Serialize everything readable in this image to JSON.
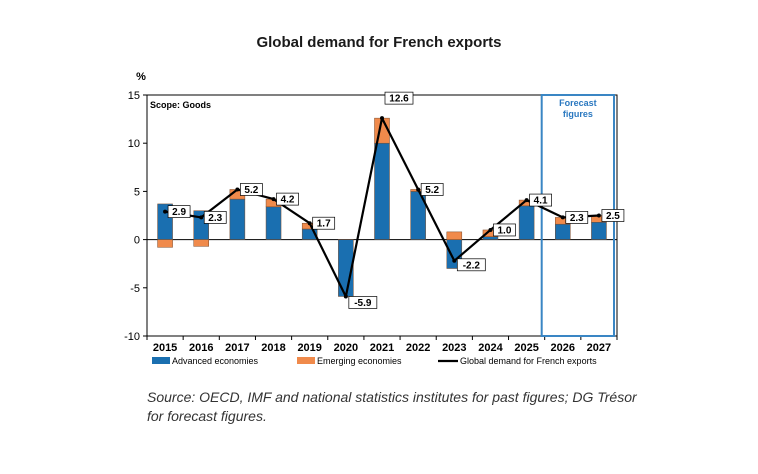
{
  "chart_data": {
    "type": "bar",
    "title": "Global demand for French exports",
    "ylabel": "%",
    "annotation_scope": "Scope: Goods",
    "annotation_forecast": "Forecast figures",
    "ylim": [
      -10,
      15
    ],
    "yticks": [
      15,
      10,
      5,
      0,
      -5,
      -10
    ],
    "categories": [
      "2015",
      "2016",
      "2017",
      "2018",
      "2019",
      "2020",
      "2021",
      "2022",
      "2023",
      "2024",
      "2025",
      "2026",
      "2027"
    ],
    "forecast_categories": [
      "2026",
      "2027"
    ],
    "series": [
      {
        "name": "Advanced economies",
        "kind": "bar",
        "color": "#1a6fb0",
        "values": [
          3.7,
          3.0,
          4.2,
          3.4,
          1.1,
          -5.9,
          10.0,
          5.0,
          -3.0,
          0.3,
          3.5,
          1.6,
          1.8
        ]
      },
      {
        "name": "Emerging economies",
        "kind": "bar",
        "color": "#f08a4b",
        "values": [
          -0.8,
          -0.7,
          1.0,
          0.8,
          0.6,
          0.0,
          2.6,
          0.2,
          0.8,
          0.7,
          0.6,
          0.7,
          0.7
        ]
      },
      {
        "name": "Global demand for French exports",
        "kind": "line",
        "color": "#000000",
        "values": [
          2.9,
          2.3,
          5.2,
          4.2,
          1.7,
          -5.9,
          12.6,
          5.2,
          -2.2,
          1.0,
          4.1,
          2.3,
          2.5
        ],
        "labels": [
          "2.9",
          "2.3",
          "5.2",
          "4.2",
          "1.7",
          "-5.9",
          "12.6",
          "5.2",
          "-2.2",
          "1.0",
          "4.1",
          "2.3",
          "2.5"
        ]
      }
    ],
    "legend_position": "bottom",
    "grid": false
  },
  "source_note": "Source: OECD, IMF and national statistics institutes for past figures; DG Trésor for forecast figures."
}
